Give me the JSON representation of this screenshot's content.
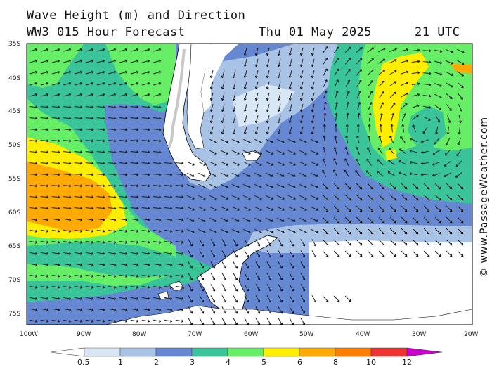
{
  "header": {
    "title": "Wave Height (m) and Direction",
    "model": "WW3 015 Hour Forecast",
    "date": "Thu 01 May 2025",
    "time": "21 UTC"
  },
  "axes": {
    "lat_labels": [
      "35S",
      "40S",
      "45S",
      "50S",
      "55S",
      "60S",
      "65S",
      "70S",
      "75S"
    ],
    "lon_labels": [
      "100W",
      "90W",
      "80W",
      "70W",
      "60W",
      "50W",
      "40W",
      "30W",
      "20W"
    ]
  },
  "legend": {
    "labels": [
      "0.5",
      "1",
      "2",
      "3",
      "4",
      "5",
      "6",
      "8",
      "10",
      "12"
    ],
    "colors": [
      "#d9e6f5",
      "#a9c3e6",
      "#6688d2",
      "#39c499",
      "#66ee66",
      "#ffee00",
      "#ffaa00",
      "#ff7f00",
      "#ee3333",
      "#aa0000",
      "#cc00cc"
    ]
  },
  "watermark": "© www.PassageWeather.com",
  "colors": {
    "land": "#ffffff",
    "coast": "#000000",
    "grey_margin": "#c8c8c8"
  }
}
